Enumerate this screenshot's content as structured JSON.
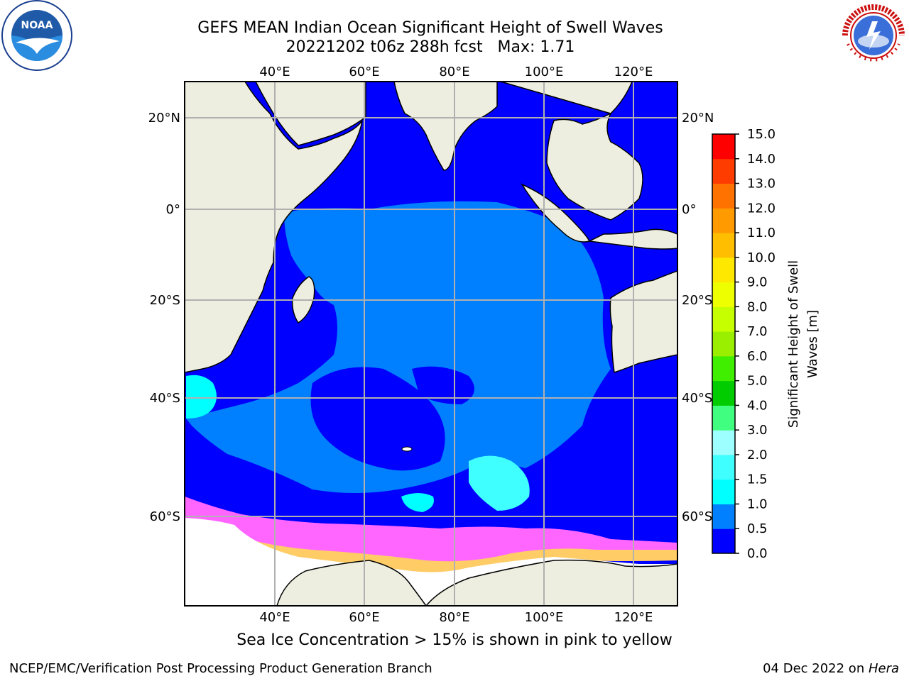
{
  "title": {
    "line1": "GEFS MEAN Indian Ocean Significant Height of Swell Waves",
    "line2": "20221202 t06z 288h fcst   Max: 1.71"
  },
  "logos": {
    "left": "noaa-logo",
    "right": "nws-logo"
  },
  "map": {
    "top_lon_labels": [
      "40°E",
      "60°E",
      "80°E",
      "100°E",
      "120°E"
    ],
    "bottom_lon_labels": [
      "40°E",
      "60°E",
      "80°E",
      "100°E",
      "120°E"
    ],
    "left_lat_labels": [
      "20°N",
      "0°",
      "20°S",
      "40°S",
      "60°S"
    ],
    "right_lat_labels": [
      "20°N",
      "0°",
      "20°S",
      "40°S",
      "60°S"
    ],
    "lon_range": [
      20,
      130
    ],
    "lat_range": [
      -73,
      28
    ],
    "colors": {
      "land": "#eeeee0",
      "ocean_low": "#0000ff",
      "ocean_mid": "#0080ff",
      "ocean_high": "#00ffff",
      "ice": "#ffffff"
    }
  },
  "colorbar": {
    "label": "Significant Height of Swell Waves [m]",
    "ticks": [
      "0.0",
      "0.5",
      "1.0",
      "1.5",
      "2.0",
      "3.0",
      "4.0",
      "5.0",
      "6.0",
      "7.0",
      "8.0",
      "9.0",
      "10.0",
      "11.0",
      "12.0",
      "13.0",
      "14.0",
      "15.0"
    ],
    "colors": [
      "#0000ff",
      "#0080ff",
      "#00ffff",
      "#40ffff",
      "#9dffff",
      "#40ff80",
      "#00cc00",
      "#40ee00",
      "#9aee00",
      "#c6ff00",
      "#eeff00",
      "#ffe800",
      "#ffbf00",
      "#ff9a00",
      "#ff7200",
      "#ff3c00",
      "#ff0000"
    ]
  },
  "subtitle": "Sea Ice Concentration > 15% is shown in pink to yellow",
  "footer": {
    "left": "NCEP/EMC/Verification Post Processing Product Generation Branch",
    "right_date": "04 Dec 2022 on ",
    "right_host": "Hera"
  }
}
